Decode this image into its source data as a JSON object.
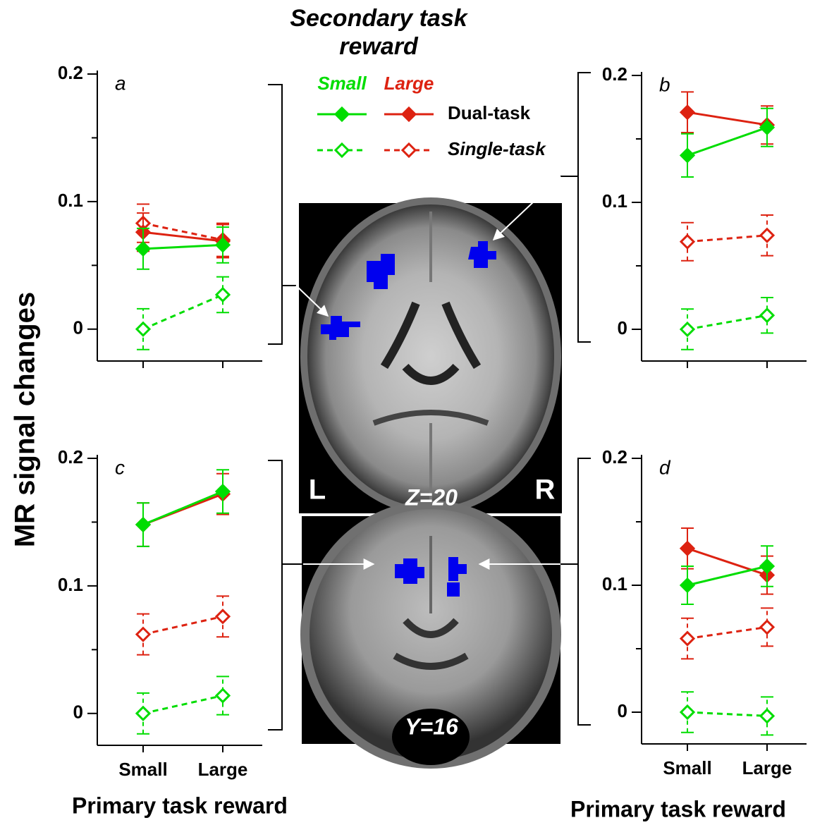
{
  "figure": {
    "y_label": "MR signal changes",
    "x_labels": [
      "Primary task reward",
      "Primary task reward"
    ],
    "legend": {
      "title": "Secondary task reward",
      "columns": [
        {
          "label": "Small",
          "color": "#00dd00"
        },
        {
          "label": "Large",
          "color": "#dd2211"
        }
      ],
      "rows": [
        {
          "label": "Dual-task",
          "style": "solid",
          "marker": "filled"
        },
        {
          "label": "Single-task",
          "style": "dashed",
          "marker": "open"
        }
      ]
    },
    "images": [
      {
        "labels": [
          "L",
          "R",
          "Z=20"
        ]
      },
      {
        "labels": [
          "Y=16"
        ]
      }
    ]
  },
  "chart_data": [
    {
      "type": "line",
      "label": "a",
      "categories": [
        null,
        null
      ],
      "ylim": [
        -0.025,
        0.2
      ],
      "yticks": [
        0,
        0.1,
        0.2
      ],
      "minor_yticks": [
        0.05,
        0.15
      ],
      "series": [
        {
          "color": "#00dd00",
          "style": "dashed",
          "marker": "open",
          "values": [
            0,
            0.027
          ],
          "errors": [
            0.016,
            0.014
          ]
        },
        {
          "color": "#dd2211",
          "style": "dashed",
          "marker": "open",
          "values": [
            0.083,
            0.07
          ],
          "errors": [
            0.015,
            0.013
          ]
        },
        {
          "color": "#dd2211",
          "style": "solid",
          "marker": "filled",
          "values": [
            0.076,
            0.069
          ],
          "errors": [
            0.015,
            0.013
          ]
        },
        {
          "color": "#00dd00",
          "style": "solid",
          "marker": "filled",
          "values": [
            0.063,
            0.066
          ],
          "errors": [
            0.016,
            0.014
          ]
        }
      ]
    },
    {
      "type": "line",
      "label": "b",
      "categories": [
        null,
        null
      ],
      "ylim": [
        -0.025,
        0.2
      ],
      "yticks": [
        0,
        0.1,
        0.2
      ],
      "minor_yticks": [
        0.05,
        0.15
      ],
      "series": [
        {
          "color": "#00dd00",
          "style": "dashed",
          "marker": "open",
          "values": [
            0,
            0.011
          ],
          "errors": [
            0.016,
            0.014
          ]
        },
        {
          "color": "#dd2211",
          "style": "dashed",
          "marker": "open",
          "values": [
            0.069,
            0.074
          ],
          "errors": [
            0.015,
            0.016
          ]
        },
        {
          "color": "#dd2211",
          "style": "solid",
          "marker": "filled",
          "values": [
            0.171,
            0.161
          ],
          "errors": [
            0.016,
            0.015
          ]
        },
        {
          "color": "#00dd00",
          "style": "solid",
          "marker": "filled",
          "values": [
            0.137,
            0.159
          ],
          "errors": [
            0.017,
            0.015
          ]
        }
      ]
    },
    {
      "type": "line",
      "label": "c",
      "categories": [
        "Small",
        "Large"
      ],
      "ylim": [
        -0.025,
        0.2
      ],
      "yticks": [
        0,
        0.1,
        0.2
      ],
      "minor_yticks": [
        0.05,
        0.15
      ],
      "series": [
        {
          "color": "#00dd00",
          "style": "dashed",
          "marker": "open",
          "values": [
            0,
            0.014
          ],
          "errors": [
            0.016,
            0.015
          ]
        },
        {
          "color": "#dd2211",
          "style": "dashed",
          "marker": "open",
          "values": [
            0.062,
            0.076
          ],
          "errors": [
            0.016,
            0.016
          ]
        },
        {
          "color": "#dd2211",
          "style": "solid",
          "marker": "filled",
          "values": [
            0.148,
            0.172
          ],
          "errors": [
            0.017,
            0.016
          ]
        },
        {
          "color": "#00dd00",
          "style": "solid",
          "marker": "filled",
          "values": [
            0.148,
            0.174
          ],
          "errors": [
            0.017,
            0.017
          ]
        }
      ]
    },
    {
      "type": "line",
      "label": "d",
      "categories": [
        "Small",
        "Large"
      ],
      "ylim": [
        -0.025,
        0.2
      ],
      "yticks": [
        0,
        0.1,
        0.2
      ],
      "minor_yticks": [
        0.05,
        0.15
      ],
      "series": [
        {
          "color": "#00dd00",
          "style": "dashed",
          "marker": "open",
          "values": [
            0,
            -0.003
          ],
          "errors": [
            0.016,
            0.015
          ]
        },
        {
          "color": "#dd2211",
          "style": "dashed",
          "marker": "open",
          "values": [
            0.058,
            0.067
          ],
          "errors": [
            0.016,
            0.015
          ]
        },
        {
          "color": "#dd2211",
          "style": "solid",
          "marker": "filled",
          "values": [
            0.129,
            0.108
          ],
          "errors": [
            0.016,
            0.015
          ]
        },
        {
          "color": "#00dd00",
          "style": "solid",
          "marker": "filled",
          "values": [
            0.1,
            0.115
          ],
          "errors": [
            0.015,
            0.016
          ]
        }
      ]
    }
  ]
}
